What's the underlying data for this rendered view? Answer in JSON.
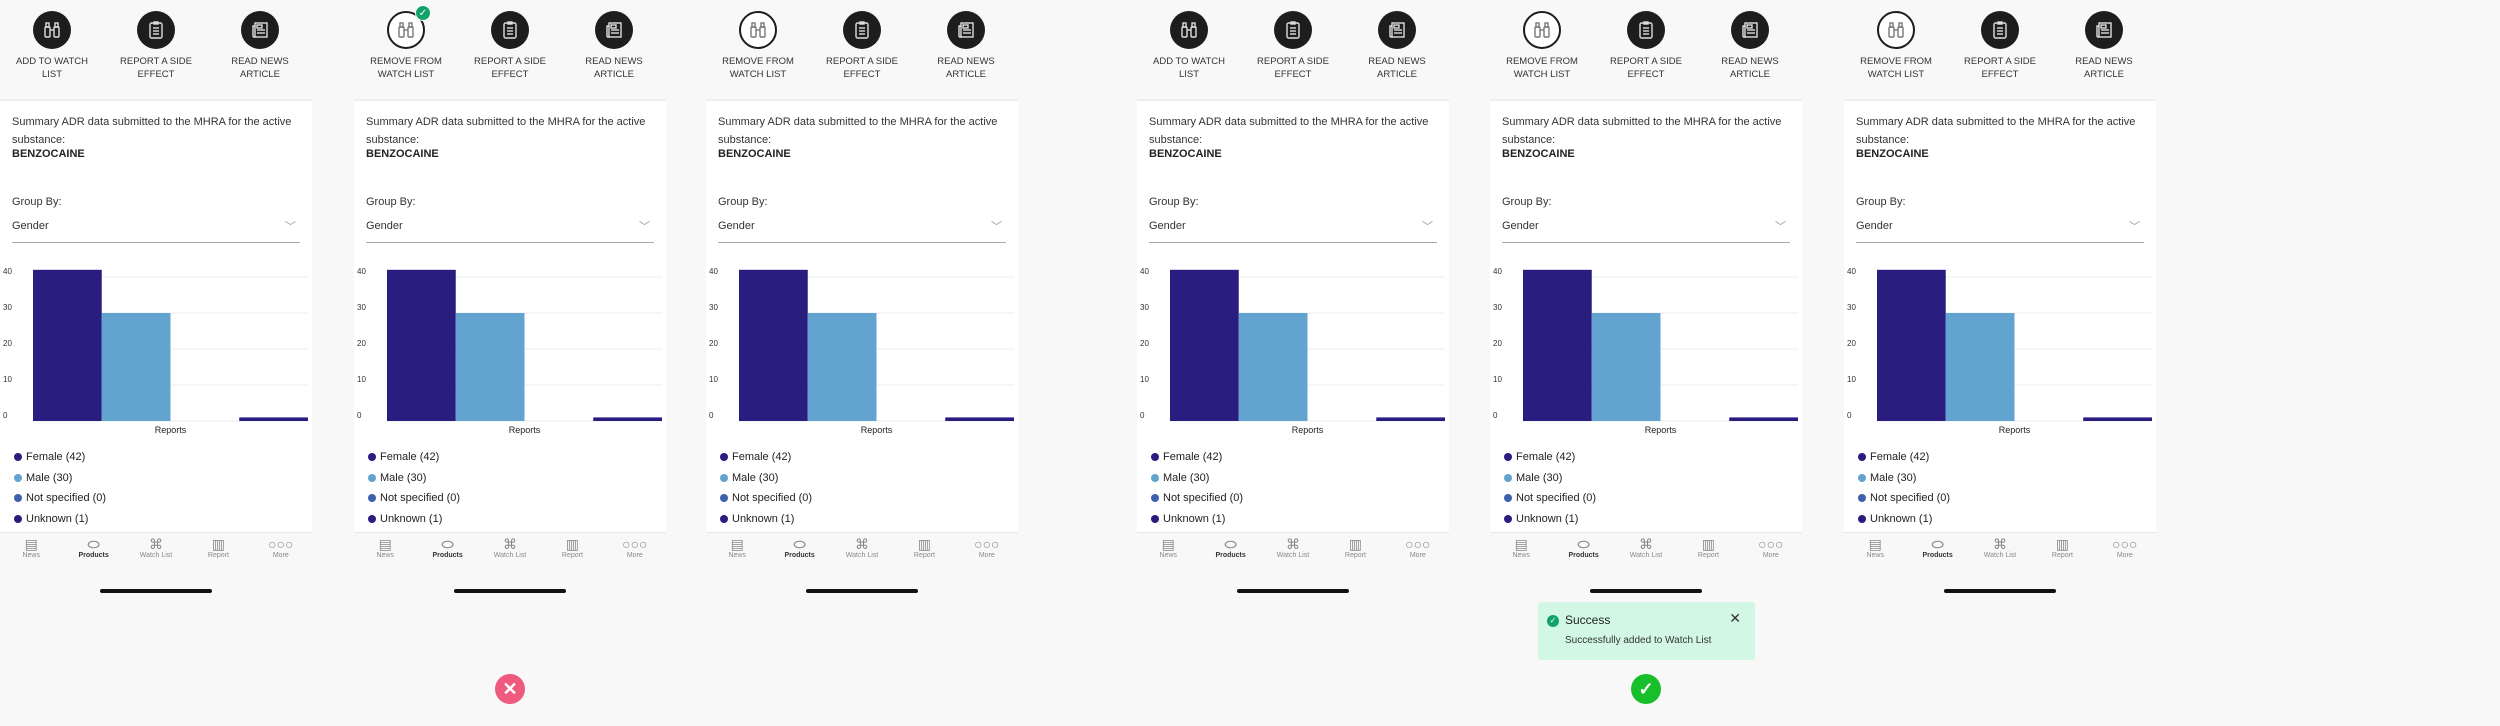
{
  "actions": {
    "add_watch": "ADD TO WATCH LIST",
    "remove_watch": "REMOVE FROM WATCH LIST",
    "report": "REPORT A SIDE EFFECT",
    "news": "READ NEWS ARTICLE"
  },
  "summary_text": "Summary ADR data submitted to the MHRA for the active substance:",
  "substance": "BENZOCAINE",
  "group_by_label": "Group By:",
  "group_by_value": "Gender",
  "chart_data": {
    "type": "bar",
    "categories": [
      "Female",
      "Male",
      "Not specified",
      "Unknown"
    ],
    "values": [
      42,
      30,
      0,
      1
    ],
    "colors": [
      "#291d7f",
      "#62a3cf",
      "#3f5fb0",
      "#291d7f"
    ],
    "xlabel": "Reports",
    "ylabel": "",
    "yticks": [
      "0",
      "10",
      "20",
      "30",
      "40"
    ],
    "ylim": [
      0,
      40
    ],
    "legend": [
      "Female (42)",
      "Male (30)",
      "Not specified (0)",
      "Unknown (1)"
    ]
  },
  "tabs": [
    "News",
    "Products",
    "Watch List",
    "Report",
    "More"
  ],
  "toast": {
    "title": "Success",
    "message": "Successfully added to Watch List"
  },
  "screens": [
    {
      "watch_state": "add",
      "badge": false,
      "result": null
    },
    {
      "watch_state": "remove",
      "badge": true,
      "result": "fail"
    },
    {
      "watch_state": "remove",
      "badge": false,
      "result": null
    },
    {
      "watch_state": "add",
      "badge": false,
      "result": null
    },
    {
      "watch_state": "remove",
      "badge": false,
      "result": "pass",
      "toast": true
    },
    {
      "watch_state": "remove",
      "badge": false,
      "result": null
    }
  ],
  "colors": {
    "fail": "#ef5b7e",
    "pass": "#19bf2a",
    "success_bg": "#d2f7e4"
  }
}
